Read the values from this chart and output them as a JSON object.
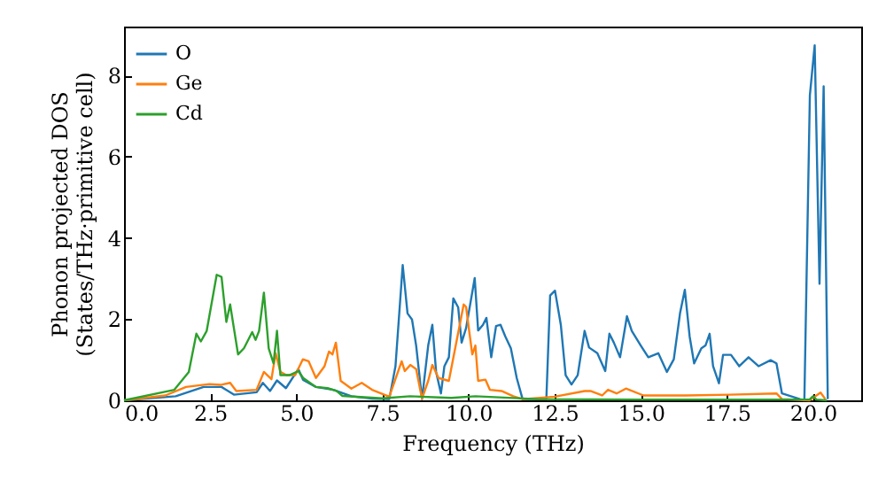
{
  "chart_data": {
    "type": "line",
    "xlabel": "Frequency (THz)",
    "ylabel": "Phonon projected DOS\n(States/THz·primitive cell)",
    "xlim": [
      0,
      21.4
    ],
    "ylim": [
      0,
      9.2
    ],
    "xticks": [
      {
        "value": 0,
        "label": "0.0"
      },
      {
        "value": 2.5,
        "label": "2.5"
      },
      {
        "value": 5,
        "label": "5.0"
      },
      {
        "value": 7.5,
        "label": "7.5"
      },
      {
        "value": 10,
        "label": "10.0"
      },
      {
        "value": 12.5,
        "label": "12.5"
      },
      {
        "value": 15,
        "label": "15.0"
      },
      {
        "value": 17.5,
        "label": "17.5"
      },
      {
        "value": 20,
        "label": "20.0"
      }
    ],
    "yticks": [
      0,
      2,
      4,
      6,
      8
    ],
    "grid": false,
    "legend": "top left",
    "marker": "none",
    "line_style": "solid",
    "series": [
      {
        "name": "O",
        "color": "#1f77b4",
        "x": [
          0,
          1.5,
          2.31,
          2.83,
          3.19,
          3.85,
          4.03,
          4.24,
          4.44,
          4.7,
          5.06,
          5.2,
          5.57,
          6.08,
          6.6,
          7.2,
          7.7,
          7.88,
          8.09,
          8.23,
          8.36,
          8.48,
          8.65,
          8.83,
          8.95,
          9.06,
          9.2,
          9.3,
          9.43,
          9.56,
          9.7,
          9.8,
          9.93,
          10.18,
          10.28,
          10.42,
          10.52,
          10.66,
          10.8,
          10.93,
          11.07,
          11.23,
          11.4,
          11.57,
          12.26,
          12.37,
          12.51,
          12.68,
          12.82,
          12.99,
          13.17,
          13.37,
          13.5,
          13.74,
          13.97,
          14.09,
          14.22,
          14.4,
          14.6,
          14.74,
          15.0,
          15.22,
          15.51,
          15.76,
          15.96,
          16.14,
          16.28,
          16.42,
          16.55,
          16.76,
          16.88,
          17.0,
          17.1,
          17.27,
          17.39,
          17.62,
          17.86,
          18.13,
          18.42,
          18.77,
          18.94,
          19.1,
          19.62,
          19.75,
          19.91,
          20.05,
          20.19,
          20.31,
          20.43
        ],
        "values": [
          0,
          0.1,
          0.33,
          0.33,
          0.14,
          0.2,
          0.43,
          0.23,
          0.49,
          0.3,
          0.77,
          0.5,
          0.33,
          0.26,
          0.1,
          0.04,
          0.03,
          0.84,
          3.33,
          2.14,
          1.99,
          1.35,
          0.03,
          1.35,
          1.86,
          0.7,
          0.17,
          0.84,
          1.06,
          2.51,
          2.29,
          1.42,
          1.78,
          3.01,
          1.72,
          1.86,
          2.03,
          1.06,
          1.83,
          1.86,
          1.57,
          1.28,
          0.55,
          0.03,
          0.03,
          2.58,
          2.7,
          1.86,
          0.62,
          0.39,
          0.62,
          1.71,
          1.3,
          1.16,
          0.72,
          1.64,
          1.42,
          1.06,
          2.07,
          1.71,
          1.35,
          1.06,
          1.16,
          0.7,
          1.01,
          2.14,
          2.72,
          1.57,
          0.91,
          1.28,
          1.35,
          1.64,
          0.84,
          0.42,
          1.12,
          1.12,
          0.84,
          1.06,
          0.84,
          0.99,
          0.91,
          0.17,
          0.03,
          0,
          7.51,
          8.74,
          2.87,
          7.73,
          0.03
        ]
      },
      {
        "name": "Ge",
        "color": "#ff7f0e",
        "x": [
          0,
          1.2,
          1.8,
          2.48,
          2.8,
          3.08,
          3.26,
          3.85,
          4.06,
          4.28,
          4.4,
          4.54,
          4.71,
          4.97,
          5.19,
          5.36,
          5.57,
          5.82,
          5.95,
          6.05,
          6.15,
          6.29,
          6.6,
          6.9,
          7.2,
          7.7,
          8.06,
          8.15,
          8.31,
          8.48,
          8.65,
          8.83,
          8.95,
          9.13,
          9.43,
          9.86,
          9.93,
          10.03,
          10.11,
          10.2,
          10.28,
          10.49,
          10.62,
          10.96,
          11.3,
          11.57,
          12.5,
          13.37,
          13.54,
          13.88,
          14.05,
          14.3,
          14.57,
          15.08,
          16.3,
          17.57,
          18.94,
          19.1,
          19.9,
          20.22,
          20.36
        ],
        "values": [
          0,
          0.12,
          0.33,
          0.4,
          0.38,
          0.43,
          0.23,
          0.26,
          0.7,
          0.52,
          1.16,
          0.7,
          0.62,
          0.62,
          1.01,
          0.96,
          0.55,
          0.84,
          1.2,
          1.13,
          1.42,
          0.48,
          0.29,
          0.43,
          0.26,
          0.09,
          0.96,
          0.72,
          0.87,
          0.77,
          0.04,
          0.48,
          0.87,
          0.55,
          0.48,
          2.36,
          2.3,
          1.64,
          1.13,
          1.35,
          0.48,
          0.51,
          0.26,
          0.23,
          0.1,
          0.03,
          0.09,
          0.23,
          0.23,
          0.12,
          0.26,
          0.17,
          0.29,
          0.12,
          0.12,
          0.14,
          0.17,
          0.03,
          0,
          0.19,
          0.03
        ]
      },
      {
        "name": "Cd",
        "color": "#2ca02c",
        "x": [
          0,
          1.46,
          1.88,
          2.1,
          2.23,
          2.4,
          2.69,
          2.83,
          2.97,
          3.08,
          3.31,
          3.48,
          3.72,
          3.82,
          3.92,
          4.06,
          4.2,
          4.34,
          4.44,
          4.54,
          4.8,
          5.06,
          5.2,
          5.57,
          5.91,
          6.17,
          6.34,
          7.5,
          8.3,
          9.5,
          10.2,
          12,
          15,
          18,
          19.9,
          20.0,
          20.1,
          20.4
        ],
        "values": [
          0,
          0.26,
          0.7,
          1.64,
          1.45,
          1.71,
          3.09,
          3.04,
          1.93,
          2.36,
          1.13,
          1.28,
          1.68,
          1.49,
          1.71,
          2.65,
          1.28,
          0.91,
          1.71,
          0.62,
          0.62,
          0.72,
          0.55,
          0.33,
          0.3,
          0.23,
          0.11,
          0.05,
          0.1,
          0.06,
          0.1,
          0.03,
          0.02,
          0.02,
          0.02,
          0.1,
          0.02,
          0
        ]
      }
    ]
  }
}
